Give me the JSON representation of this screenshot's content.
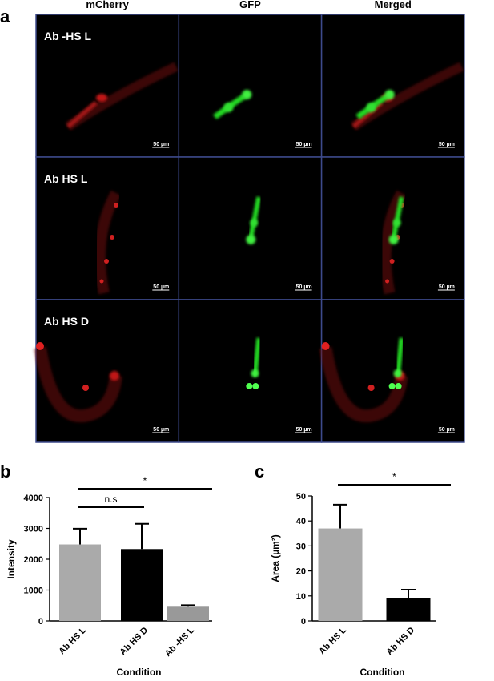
{
  "figure_a": {
    "label": "a",
    "columns": [
      "mCherry",
      "GFP",
      "Merged"
    ],
    "rows": [
      "Ab -HS L",
      "Ab HS L",
      "Ab HS D"
    ],
    "scale_bar": "50 µm"
  },
  "chart_data": [
    {
      "type": "bar",
      "label": "b",
      "x_label": "Condition",
      "y_label": "Intensity",
      "categories": [
        "Ab HS L",
        "Ab HS D",
        "Ab -HS L"
      ],
      "values": [
        2480,
        2330,
        460
      ],
      "errors": [
        510,
        820,
        50
      ],
      "colors": [
        "#aaaaaa",
        "#000000",
        "#999999"
      ],
      "ylim": [
        0,
        4000
      ],
      "yticks": [
        0,
        1000,
        2000,
        3000,
        4000
      ],
      "annotations": [
        {
          "text": "n.s",
          "between": [
            "Ab HS L",
            "Ab HS D"
          ]
        },
        {
          "text": "*",
          "between": [
            "Ab HS L",
            "Ab -HS L"
          ]
        }
      ]
    },
    {
      "type": "bar",
      "label": "c",
      "x_label": "Condition",
      "y_label": "Area (µm²)",
      "categories": [
        "Ab HS L",
        "Ab HS D"
      ],
      "values": [
        37,
        9.2
      ],
      "errors": [
        9.5,
        3.3
      ],
      "colors": [
        "#aaaaaa",
        "#000000"
      ],
      "ylim": [
        0,
        50
      ],
      "yticks": [
        0,
        10,
        20,
        30,
        40,
        50
      ],
      "annotations": [
        {
          "text": "*",
          "between": [
            "Ab HS L",
            "Ab HS D"
          ]
        }
      ]
    }
  ]
}
